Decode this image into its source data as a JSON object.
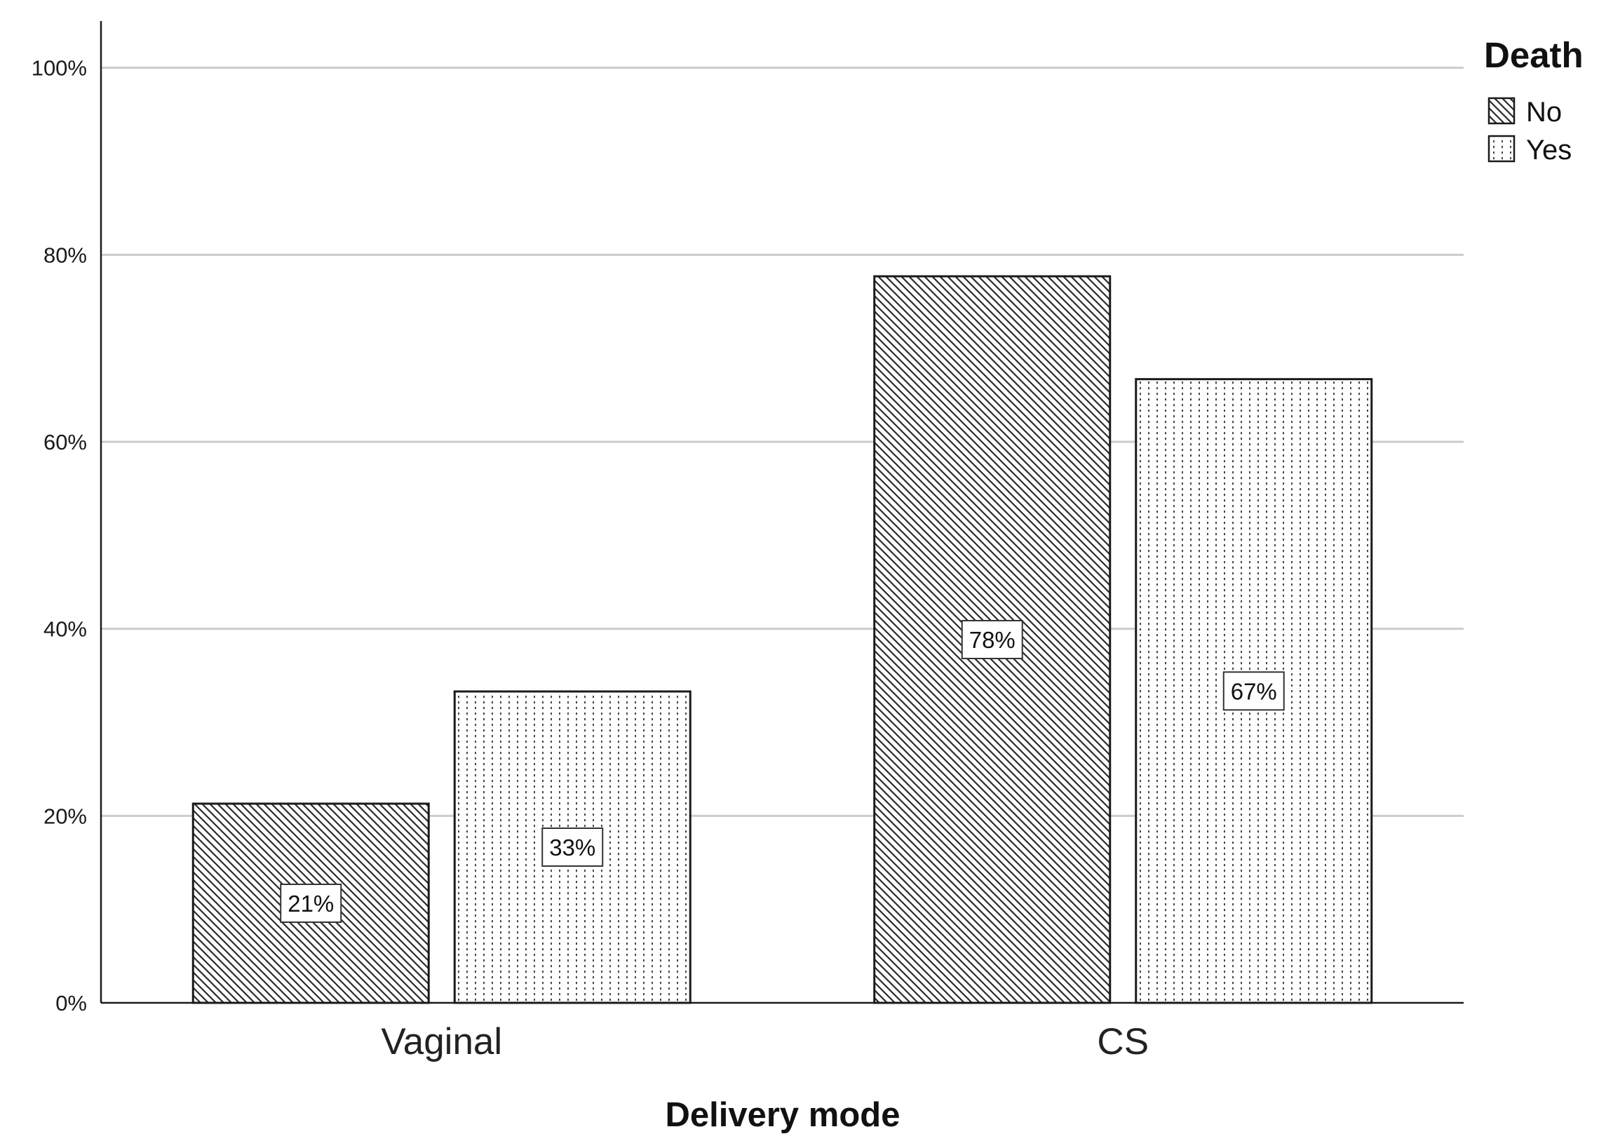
{
  "chart_data": {
    "type": "bar",
    "title": "",
    "xlabel": "Delivery mode",
    "ylabel": "",
    "categories": [
      "Vaginal",
      "CS"
    ],
    "series": [
      {
        "name": "No",
        "values": [
          21.3,
          77.7
        ],
        "labels": [
          "21%",
          "78%"
        ],
        "pattern": "diagonal-hatch"
      },
      {
        "name": "Yes",
        "values": [
          33.3,
          66.7
        ],
        "labels": [
          "33%",
          "67%"
        ],
        "pattern": "dotted-vertical"
      }
    ],
    "ylim": [
      0,
      105
    ],
    "yticks": [
      0,
      20,
      40,
      60,
      80,
      100
    ],
    "ytick_labels": [
      "0%",
      "20%",
      "40%",
      "60%",
      "80%",
      "100%"
    ],
    "legend_title": "Death",
    "legend_position": "top-right",
    "grid": "horizontal",
    "colors": {
      "bar_border": "#1a1a1a",
      "hatch": "#333333",
      "grid": "#cccccc",
      "axis": "#1a1a1a"
    }
  }
}
